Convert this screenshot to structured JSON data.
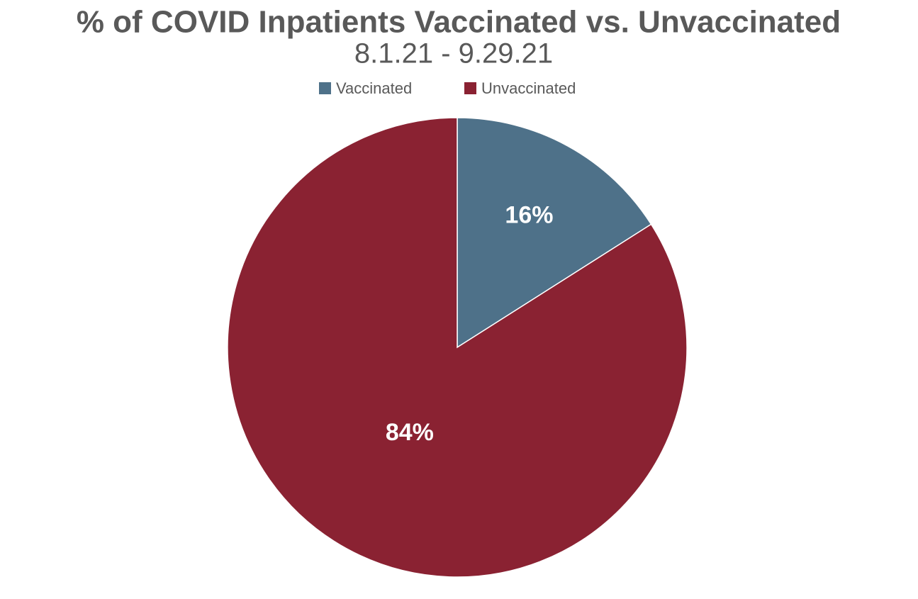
{
  "chart_data": {
    "type": "pie",
    "title": "% of COVID Inpatients Vaccinated vs. Unvaccinated",
    "subtitle": "8.1.21 - 9.29.21",
    "categories": [
      "Vaccinated",
      "Unvaccinated"
    ],
    "values": [
      16,
      84
    ],
    "value_labels": [
      "16%",
      "84%"
    ],
    "colors": [
      "#4e7189",
      "#8a2232"
    ],
    "legend": "top"
  }
}
